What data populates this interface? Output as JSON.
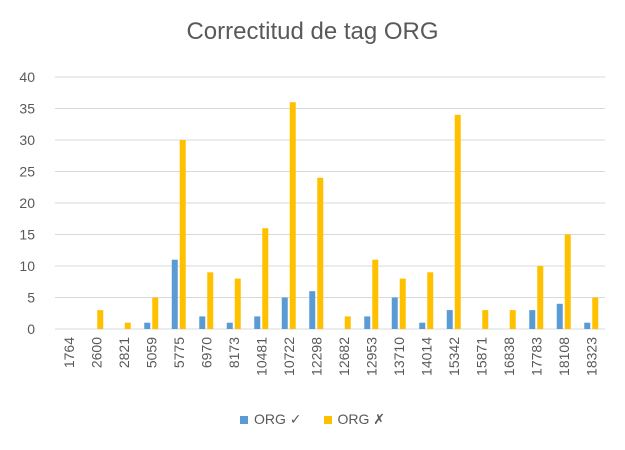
{
  "chart_data": {
    "type": "bar",
    "title": "Correctitud de tag ORG",
    "xlabel": "",
    "ylabel": "",
    "ylim": [
      0,
      40
    ],
    "yticks": [
      0,
      5,
      10,
      15,
      20,
      25,
      30,
      35,
      40
    ],
    "grid": true,
    "legend_position": "bottom",
    "categories": [
      "1764",
      "2600",
      "2821",
      "5059",
      "5775",
      "6970",
      "8173",
      "10481",
      "10722",
      "12298",
      "12682",
      "12953",
      "13710",
      "14014",
      "15342",
      "15871",
      "16838",
      "17783",
      "18108",
      "18323"
    ],
    "series": [
      {
        "name": "ORG ✓",
        "color": "#5b9bd5",
        "values": [
          0,
          0,
          0,
          1,
          11,
          2,
          1,
          2,
          5,
          6,
          0,
          2,
          5,
          1,
          3,
          0,
          0,
          3,
          4,
          1
        ]
      },
      {
        "name": "ORG ✗",
        "color": "#ffc000",
        "values": [
          0,
          3,
          1,
          5,
          30,
          9,
          8,
          16,
          36,
          24,
          2,
          11,
          8,
          9,
          34,
          3,
          3,
          10,
          15,
          5
        ]
      }
    ]
  }
}
